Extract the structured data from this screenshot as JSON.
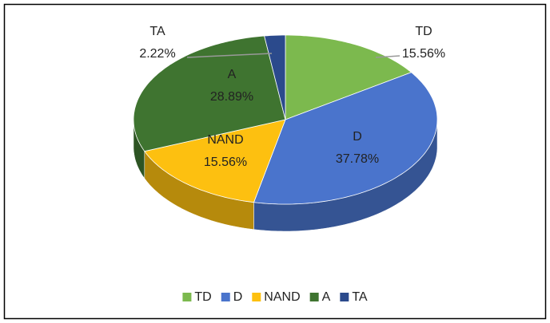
{
  "chart_data": {
    "type": "pie",
    "categories": [
      "TD",
      "D",
      "NAND",
      "A",
      "TA"
    ],
    "values": [
      15.56,
      37.78,
      15.56,
      28.89,
      2.22
    ],
    "value_labels": [
      "15.56%",
      "37.78%",
      "15.56%",
      "28.89%",
      "2.22%"
    ],
    "colors": [
      "#7cb94e",
      "#4a74cc",
      "#fdc010",
      "#3f7430",
      "#2b4a8c"
    ],
    "legend": "bottom"
  }
}
